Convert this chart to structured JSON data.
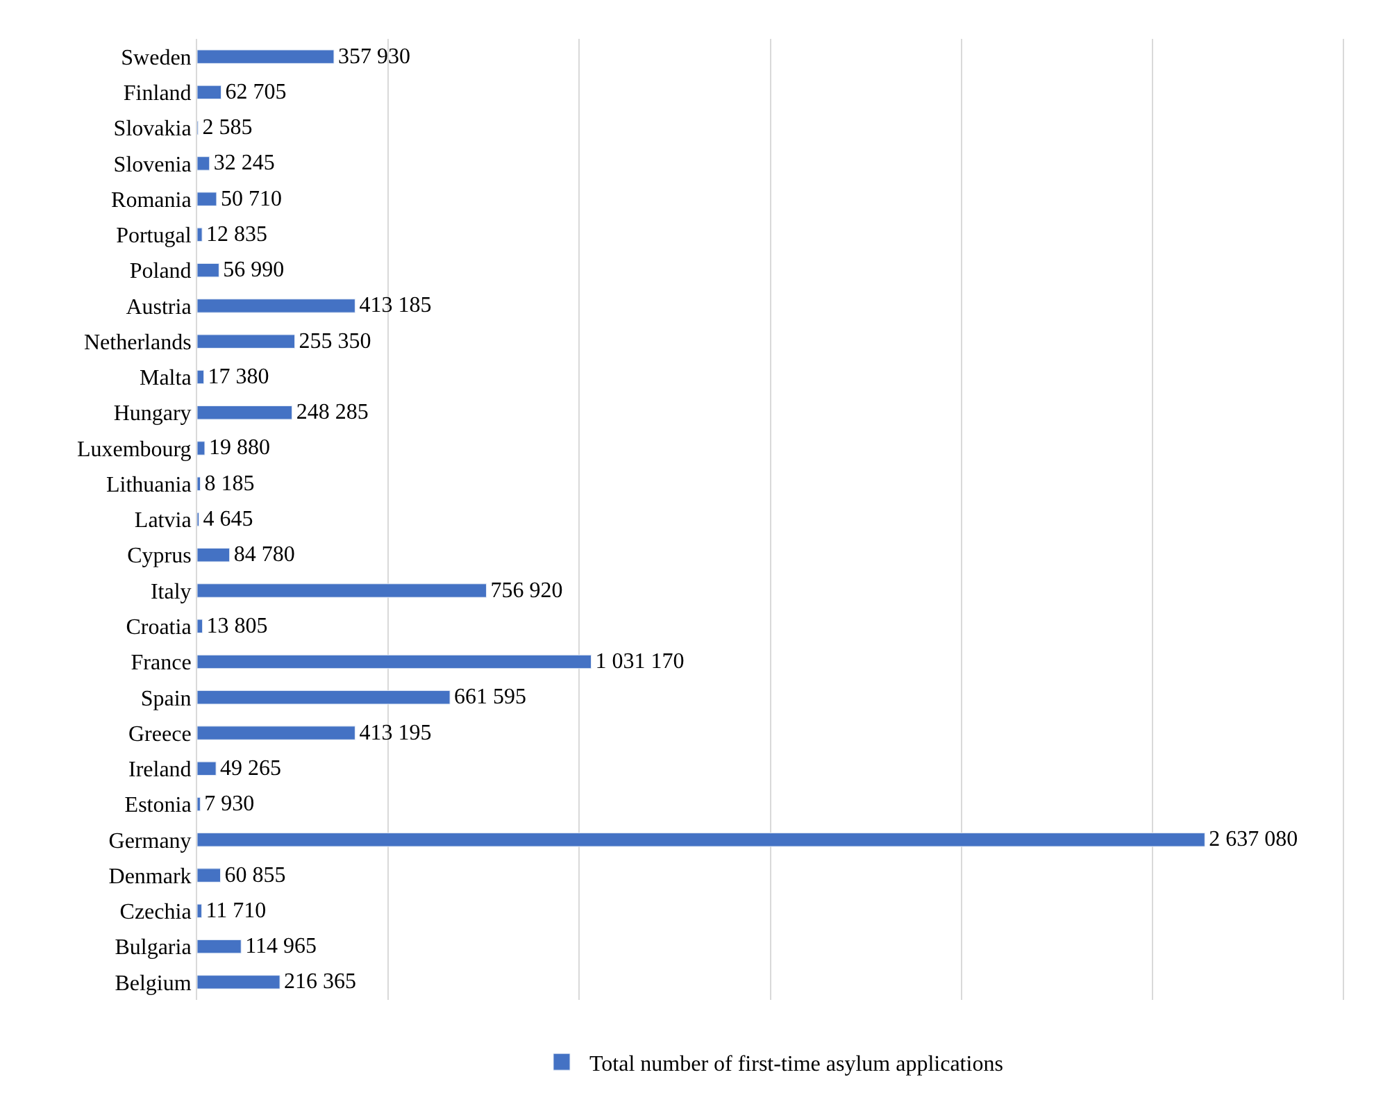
{
  "chart_data": {
    "type": "bar",
    "orientation": "horizontal",
    "categories": [
      "Sweden",
      "Finland",
      "Slovakia",
      "Slovenia",
      "Romania",
      "Portugal",
      "Poland",
      "Austria",
      "Netherlands",
      "Malta",
      "Hungary",
      "Luxembourg",
      "Lithuania",
      "Latvia",
      "Cyprus",
      "Italy",
      "Croatia",
      "France",
      "Spain",
      "Greece",
      "Ireland",
      "Estonia",
      "Germany",
      "Denmark",
      "Czechia",
      "Bulgaria",
      "Belgium"
    ],
    "series": [
      {
        "name": "Total number of first-time asylum applications",
        "color": "#4472c4",
        "values": [
          357930,
          62705,
          2585,
          32245,
          50710,
          12835,
          56990,
          413185,
          255350,
          17380,
          248285,
          19880,
          8185,
          4645,
          84780,
          756920,
          13805,
          1031170,
          661595,
          413195,
          49265,
          7930,
          2637080,
          60855,
          11710,
          114965,
          216365
        ]
      }
    ],
    "xticks": [
      {
        "value": 0,
        "label": null
      },
      {
        "value": 500000,
        "label": null
      },
      {
        "value": 1000000,
        "label": null
      },
      {
        "value": 1500000,
        "label": null
      },
      {
        "value": 2000000,
        "label": null
      },
      {
        "value": 2500000,
        "label": null
      },
      {
        "value": 3000000,
        "label": null
      }
    ],
    "tick_labels": "y",
    "grid": "x",
    "data_labels": true,
    "legend": "bottom"
  }
}
